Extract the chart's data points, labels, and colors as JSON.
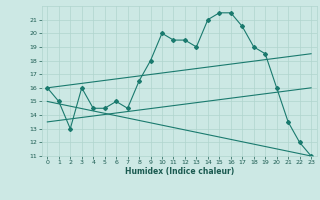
{
  "background_color": "#cce8e4",
  "grid_color": "#b0d5ce",
  "line_color": "#1a7a6e",
  "xlim": [
    -0.5,
    23.5
  ],
  "ylim": [
    11,
    22
  ],
  "yticks": [
    11,
    12,
    13,
    14,
    15,
    16,
    17,
    18,
    19,
    20,
    21
  ],
  "xticks": [
    0,
    1,
    2,
    3,
    4,
    5,
    6,
    7,
    8,
    9,
    10,
    11,
    12,
    13,
    14,
    15,
    16,
    17,
    18,
    19,
    20,
    21,
    22,
    23
  ],
  "xlabel": "Humidex (Indice chaleur)",
  "series": [
    {
      "x": [
        0,
        1,
        2,
        3,
        4,
        5,
        6,
        7,
        8,
        9,
        10,
        11,
        12,
        13,
        14,
        15,
        16,
        17,
        18,
        19,
        20,
        21,
        22,
        23
      ],
      "y": [
        16,
        15,
        13,
        16,
        14.5,
        14.5,
        15,
        14.5,
        16.5,
        18,
        20,
        19.5,
        19.5,
        19,
        21,
        21.5,
        21.5,
        20.5,
        19,
        18.5,
        16,
        13.5,
        12,
        11
      ],
      "marker": "D",
      "markersize": 2.0,
      "linewidth": 0.8
    },
    {
      "x": [
        0,
        23
      ],
      "y": [
        16,
        18.5
      ],
      "marker": null,
      "linewidth": 0.8
    },
    {
      "x": [
        0,
        23
      ],
      "y": [
        15,
        11
      ],
      "marker": null,
      "linewidth": 0.8
    },
    {
      "x": [
        0,
        23
      ],
      "y": [
        13.5,
        16
      ],
      "marker": null,
      "linewidth": 0.8
    }
  ]
}
